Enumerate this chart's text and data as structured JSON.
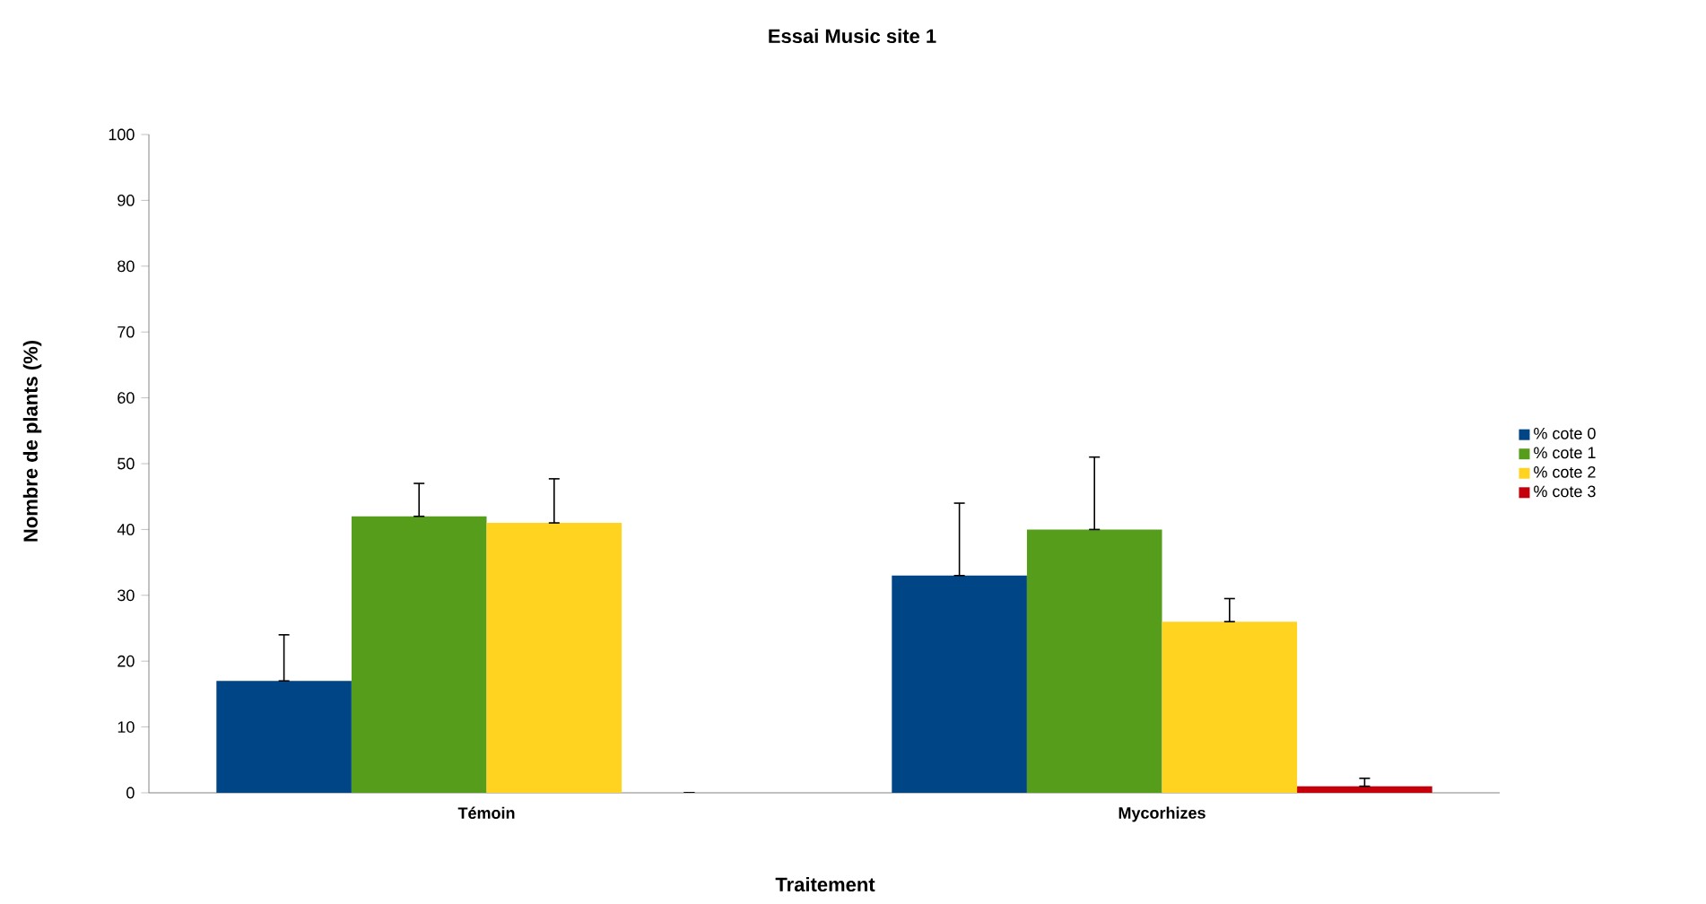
{
  "chart_data": {
    "type": "bar",
    "title": "Essai Music site 1",
    "xlabel": "Traitement",
    "ylabel": "Nombre de plants (%)",
    "categories": [
      "Témoin",
      "Mycorhizes"
    ],
    "series": [
      {
        "name": "% cote 0",
        "color": "#004586",
        "values": [
          17,
          33
        ],
        "errors": [
          [
            17,
            24
          ],
          [
            33,
            44
          ]
        ]
      },
      {
        "name": "% cote 1",
        "color": "#579d1c",
        "values": [
          42,
          40
        ],
        "errors": [
          [
            42,
            47
          ],
          [
            40,
            51
          ]
        ]
      },
      {
        "name": "% cote 2",
        "color": "#ffd320",
        "values": [
          41,
          26
        ],
        "errors": [
          [
            41,
            47.7
          ],
          [
            26,
            29.5
          ]
        ]
      },
      {
        "name": "% cote 3",
        "color": "#c5000b",
        "values": [
          0,
          1
        ],
        "errors": [
          [
            0,
            0
          ],
          [
            1,
            2.2
          ]
        ]
      }
    ],
    "ylim": [
      0,
      100
    ],
    "yticks": [
      0,
      10,
      20,
      30,
      40,
      50,
      60,
      70,
      80,
      90,
      100
    ],
    "grid": false,
    "legend": "right"
  }
}
